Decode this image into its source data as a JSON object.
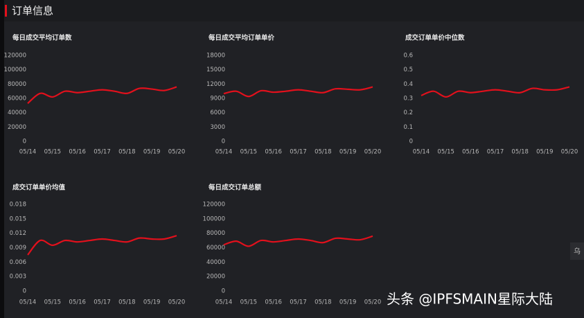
{
  "header": {
    "title": "订单信息"
  },
  "chart_data": [
    {
      "type": "line",
      "title": "每日成交平均订单数",
      "color": "#e3101c",
      "categories": [
        "05/14",
        null,
        "05/15",
        null,
        "05/16",
        null,
        "05/17",
        null,
        "05/18",
        null,
        "05/19",
        null,
        "05/20"
      ],
      "values": [
        53000,
        67000,
        62000,
        70000,
        68000,
        70000,
        72000,
        70000,
        67000,
        74000,
        73000,
        71000,
        76000
      ],
      "ylim": [
        0,
        120000
      ],
      "yticks": [
        0,
        20000,
        40000,
        60000,
        80000,
        100000,
        120000
      ]
    },
    {
      "type": "line",
      "title": "每日成交平均订单单价",
      "color": "#e3101c",
      "categories": [
        "05/14",
        null,
        "05/15",
        null,
        "05/16",
        null,
        "05/17",
        null,
        "05/18",
        null,
        "05/19",
        null,
        "05/20"
      ],
      "values": [
        10000,
        10500,
        9400,
        10600,
        10300,
        10500,
        10800,
        10500,
        10200,
        11000,
        10900,
        10800,
        11400
      ],
      "ylim": [
        0,
        18000
      ],
      "yticks": [
        0,
        3000,
        6000,
        9000,
        12000,
        15000,
        18000
      ]
    },
    {
      "type": "line",
      "title": "成交订单单价中位数",
      "color": "#e3101c",
      "categories": [
        "05/14",
        null,
        "05/15",
        null,
        "05/16",
        null,
        "05/17",
        null,
        "05/18",
        null,
        "05/19",
        null,
        "05/20"
      ],
      "values": [
        0.32,
        0.35,
        0.31,
        0.35,
        0.34,
        0.35,
        0.36,
        0.35,
        0.34,
        0.37,
        0.36,
        0.36,
        0.38
      ],
      "ylim": [
        0,
        0.6
      ],
      "yticks": [
        0,
        0.1,
        0.2,
        0.3,
        0.4,
        0.5,
        0.6
      ]
    },
    {
      "type": "line",
      "title": "成交订单单价均值",
      "color": "#e3101c",
      "categories": [
        "05/14",
        null,
        "05/15",
        null,
        "05/16",
        null,
        "05/17",
        null,
        "05/18",
        null,
        "05/19",
        null,
        "05/20"
      ],
      "values": [
        0.0075,
        0.0105,
        0.0095,
        0.0105,
        0.0102,
        0.0105,
        0.0108,
        0.0105,
        0.0102,
        0.011,
        0.0108,
        0.0108,
        0.0115
      ],
      "ylim": [
        0,
        0.018
      ],
      "yticks": [
        0,
        0.003,
        0.006,
        0.009,
        0.012,
        0.015,
        0.018
      ]
    },
    {
      "type": "line",
      "title": "每日成交订单总额",
      "color": "#e3101c",
      "categories": [
        "05/14",
        null,
        "05/15",
        null,
        "05/16",
        null,
        "05/17",
        null,
        "05/18",
        null,
        "05/19",
        null,
        "05/20"
      ],
      "values": [
        64000,
        69000,
        62000,
        70000,
        68000,
        70000,
        72000,
        70000,
        67000,
        73000,
        72000,
        71000,
        76000
      ],
      "ylim": [
        0,
        120000
      ],
      "yticks": [
        0,
        20000,
        40000,
        60000,
        80000,
        100000,
        120000
      ]
    }
  ],
  "side_tab": "乌",
  "watermark": "头条 @IPFSMAIN星际大陆"
}
